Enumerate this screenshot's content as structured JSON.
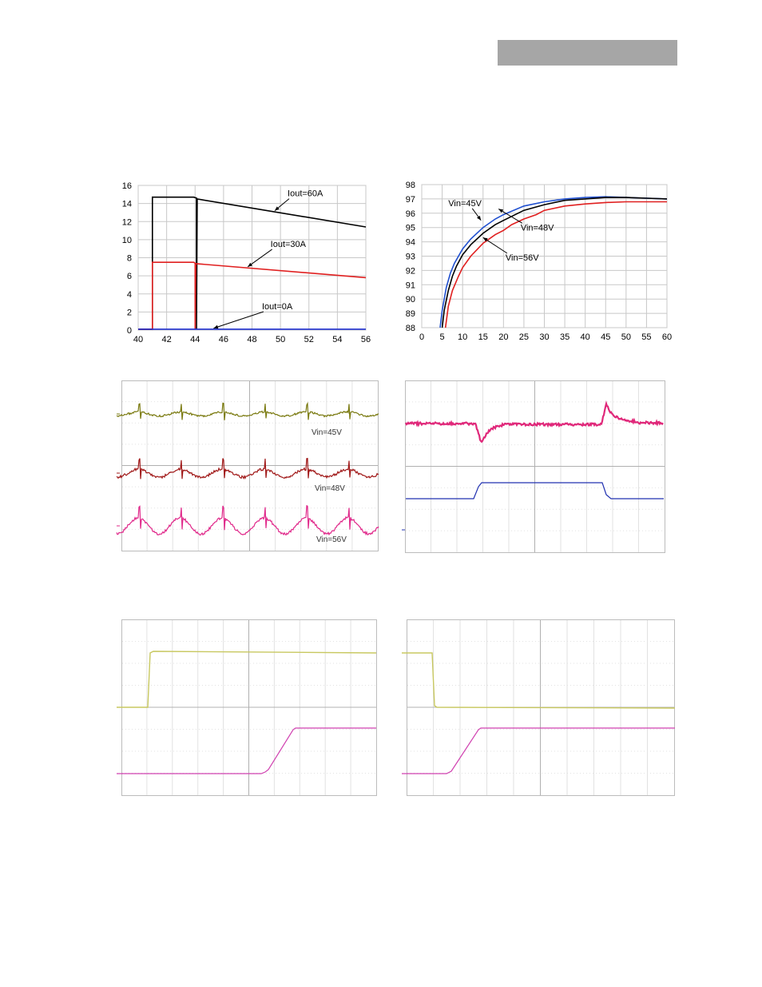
{
  "chart_data": [
    {
      "type": "line",
      "xlim": [
        40,
        56
      ],
      "ylim": [
        0,
        16
      ],
      "x_ticks": [
        40,
        42,
        44,
        46,
        48,
        50,
        52,
        54,
        56
      ],
      "y_ticks": [
        0,
        2,
        4,
        6,
        8,
        10,
        12,
        14,
        16
      ],
      "grid": true,
      "series": [
        {
          "color": "#000000",
          "x": [
            40,
            41.0,
            41.0,
            43.9,
            44.1,
            44.1,
            44.15,
            56
          ],
          "y": [
            0.1,
            0.1,
            14.7,
            14.7,
            14.6,
            0.1,
            14.5,
            11.4
          ]
        },
        {
          "color": "#e02020",
          "x": [
            40,
            41.0,
            41.0,
            43.9,
            44.0,
            44.0,
            44.05,
            56
          ],
          "y": [
            0.1,
            0.1,
            7.5,
            7.5,
            7.4,
            0.1,
            7.35,
            5.8
          ]
        },
        {
          "color": "#2030d0",
          "x": [
            40,
            56
          ],
          "y": [
            0.1,
            0.1
          ]
        }
      ],
      "annotations": [
        {
          "text": "Iout=60A",
          "x": 50.5,
          "y": 14.8,
          "arrow_to": [
            49.6,
            13.2
          ]
        },
        {
          "text": "Iout=30A",
          "x": 49.3,
          "y": 9.2,
          "arrow_to": [
            47.7,
            7.0
          ]
        },
        {
          "text": "Iout=0A",
          "x": 48.7,
          "y": 2.3,
          "arrow_to": [
            45.3,
            0.2
          ]
        }
      ]
    },
    {
      "type": "line",
      "xlim": [
        0,
        60
      ],
      "ylim": [
        88,
        98
      ],
      "x_ticks": [
        0,
        5,
        10,
        15,
        20,
        25,
        30,
        35,
        40,
        45,
        50,
        55,
        60
      ],
      "y_ticks": [
        88,
        89,
        90,
        91,
        92,
        93,
        94,
        95,
        96,
        97,
        98
      ],
      "grid": true,
      "series": [
        {
          "color": "#2050d0",
          "x": [
            4.5,
            5,
            6,
            7,
            8,
            10,
            12,
            15,
            18,
            20,
            25,
            30,
            35,
            40,
            45,
            50,
            55,
            60
          ],
          "y": [
            88,
            89.2,
            90.8,
            91.8,
            92.5,
            93.5,
            94.2,
            95.0,
            95.6,
            95.9,
            96.5,
            96.8,
            97.0,
            97.1,
            97.15,
            97.1,
            97.05,
            97.0
          ]
        },
        {
          "color": "#000000",
          "x": [
            5,
            5.5,
            6.5,
            7.5,
            8.5,
            10,
            12,
            15,
            18,
            20,
            25,
            30,
            35,
            40,
            45,
            50,
            55,
            60
          ],
          "y": [
            88,
            89.2,
            90.6,
            91.6,
            92.3,
            93.1,
            93.8,
            94.6,
            95.2,
            95.5,
            96.2,
            96.6,
            96.9,
            97.0,
            97.1,
            97.1,
            97.05,
            97.0
          ]
        },
        {
          "color": "#e02020",
          "x": [
            5.8,
            6.5,
            7.5,
            9,
            10,
            12,
            14,
            15,
            18,
            20,
            22,
            25,
            28,
            30,
            35,
            40,
            45,
            50,
            55,
            60
          ],
          "y": [
            88,
            89.5,
            90.6,
            91.6,
            92.2,
            93.0,
            93.6,
            93.9,
            94.5,
            94.8,
            95.2,
            95.6,
            95.9,
            96.2,
            96.5,
            96.65,
            96.75,
            96.8,
            96.8,
            96.8
          ]
        }
      ],
      "annotations": [
        {
          "text": "Vin=45V",
          "x": 6.5,
          "y": 96.5,
          "arrow_to": [
            14.5,
            95.5
          ]
        },
        {
          "text": "Vin=48V",
          "x": 24.2,
          "y": 94.8,
          "arrow_to": [
            18.8,
            96.3
          ]
        },
        {
          "text": "Vin=56V",
          "x": 20.5,
          "y": 92.7,
          "arrow_to": [
            15.0,
            94.3
          ]
        }
      ]
    },
    {
      "type": "line",
      "grid": true,
      "traces": [
        {
          "color": "#7a7a10",
          "shape": "ripple-spikes",
          "label": "Vin=45V"
        },
        {
          "color": "#a01818",
          "shape": "sine-spikes",
          "label": "Vin=48V"
        },
        {
          "color": "#e0288a",
          "shape": "sine-spikes",
          "label": "Vin=56V"
        }
      ]
    },
    {
      "type": "line",
      "grid": true,
      "traces": [
        {
          "color": "#e0287a",
          "shape": "load-transient"
        },
        {
          "color": "#2030b0",
          "shape": "step-pulse"
        }
      ]
    },
    {
      "type": "line",
      "grid": true,
      "traces": [
        {
          "color": "#c8c860",
          "shape": "step-up"
        },
        {
          "color": "#d040b0",
          "shape": "delayed-ramp-up"
        }
      ]
    },
    {
      "type": "line",
      "grid": true,
      "traces": [
        {
          "color": "#c8c860",
          "shape": "step-down"
        },
        {
          "color": "#d040b0",
          "shape": "early-ramp-up"
        }
      ]
    }
  ]
}
